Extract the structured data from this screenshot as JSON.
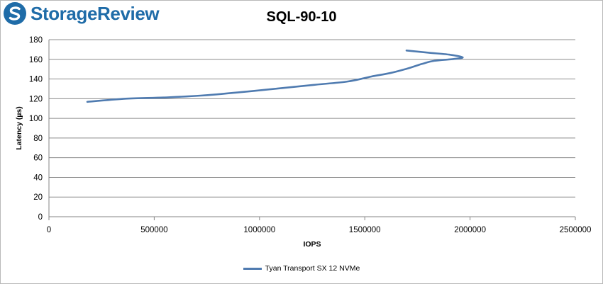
{
  "brand": {
    "name": "StorageReview",
    "color": "#1f6ca8",
    "icon": "storagereview-logo-icon"
  },
  "chart_data": {
    "type": "line",
    "title": "SQL-90-10",
    "xlabel": "IOPS",
    "ylabel": "Latency (µs)",
    "xlim": [
      0,
      2500000
    ],
    "ylim": [
      0,
      180
    ],
    "xticks": [
      0,
      500000,
      1000000,
      1500000,
      2000000,
      2500000
    ],
    "yticks": [
      0,
      20,
      40,
      60,
      80,
      100,
      120,
      140,
      160,
      180
    ],
    "grid": true,
    "legend_position": "bottom",
    "series": [
      {
        "name": "Tyan Transport SX 12 NVMe",
        "color": "#4f7bb0",
        "x": [
          182000,
          365000,
          545000,
          720000,
          900000,
          1080000,
          1255000,
          1420000,
          1530000,
          1620000,
          1700000,
          1770000,
          1830000,
          1920000,
          1965000,
          1900000,
          1800000,
          1698000
        ],
        "y": [
          116.8,
          120.0,
          121.2,
          123.1,
          126.4,
          130.2,
          134.0,
          137.5,
          142.5,
          146.0,
          150.5,
          155.2,
          158.5,
          160.3,
          162.0,
          164.8,
          166.8,
          169.0
        ]
      }
    ]
  }
}
